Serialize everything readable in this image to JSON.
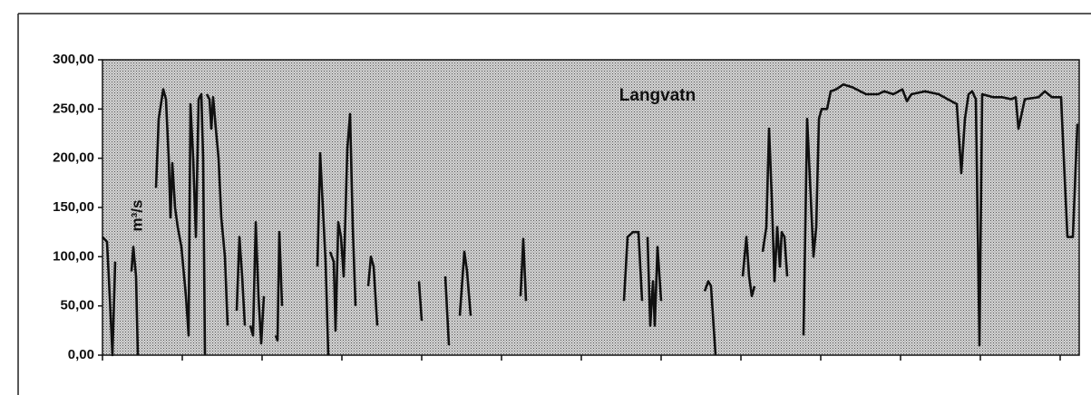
{
  "chart_data": {
    "type": "line",
    "title": "Langvatn",
    "y_label": "m³/s",
    "xlim": [
      0,
      1077
    ],
    "xticks": [
      0,
      88,
      176,
      264,
      352,
      440,
      528,
      616,
      704,
      792,
      880,
      968,
      1056
    ],
    "ylim": [
      0,
      300
    ],
    "yticks": [
      {
        "value": 0,
        "label": "0,00"
      },
      {
        "value": 50,
        "label": "50,00"
      },
      {
        "value": 100,
        "label": "100,00"
      },
      {
        "value": 150,
        "label": "150,00"
      },
      {
        "value": 200,
        "label": "200,00"
      },
      {
        "value": 250,
        "label": "250,00"
      },
      {
        "value": 300,
        "label": "300,00"
      }
    ],
    "x": [
      0,
      5,
      8,
      11,
      14,
      null,
      32,
      34,
      37,
      39,
      null,
      59,
      62,
      67,
      70,
      73,
      75,
      77,
      80,
      83,
      87,
      92,
      95,
      97,
      100,
      103,
      106,
      109,
      111,
      113,
      null,
      115,
      118,
      120,
      122,
      125,
      128,
      131,
      135,
      138,
      null,
      148,
      151,
      154,
      157,
      null,
      163,
      166,
      169,
      172,
      175,
      178,
      null,
      191,
      193,
      195,
      198,
      null,
      237,
      240,
      243,
      246,
      249,
      null,
      251,
      255,
      257,
      260,
      263,
      266,
      270,
      273,
      276,
      279,
      null,
      293,
      296,
      299,
      303,
      null,
      349,
      352,
      null,
      378,
      382,
      null,
      394,
      399,
      402,
      406,
      null,
      461,
      464,
      467,
      null,
      575,
      579,
      585,
      591,
      595,
      null,
      601,
      604,
      607,
      609,
      612,
      616,
      null,
      664,
      668,
      671,
      676,
      null,
      706,
      710,
      713,
      716,
      719,
      null,
      728,
      732,
      735,
      738,
      741,
      744,
      747,
      749,
      752,
      755,
      null,
      773,
      777,
      780,
      784,
      787,
      790,
      793,
      799,
      803,
      809,
      817,
      827,
      842,
      855,
      862,
      872,
      882,
      887,
      892,
      907,
      922,
      932,
      942,
      947,
      951,
      955,
      959,
      963,
      967,
      970,
      982,
      992,
      1002,
      1007,
      1010,
      1017,
      1032,
      1039,
      1047,
      1057,
      1060,
      1064,
      1070,
      1075
    ],
    "series": [
      {
        "name": "Langvatn",
        "color": "#111111",
        "values": [
          120,
          115,
          60,
          0,
          95,
          null,
          85,
          110,
          80,
          0,
          null,
          170,
          240,
          270,
          260,
          200,
          140,
          195,
          150,
          130,
          110,
          60,
          20,
          255,
          200,
          120,
          260,
          265,
          200,
          0,
          null,
          265,
          260,
          230,
          262,
          230,
          200,
          140,
          100,
          30,
          null,
          45,
          120,
          80,
          30,
          null,
          30,
          20,
          135,
          60,
          12,
          60,
          null,
          20,
          15,
          125,
          50,
          null,
          90,
          205,
          150,
          95,
          0,
          null,
          105,
          95,
          25,
          135,
          120,
          80,
          210,
          245,
          130,
          50,
          null,
          70,
          100,
          90,
          30,
          null,
          75,
          35,
          null,
          80,
          10,
          null,
          40,
          105,
          85,
          40,
          null,
          60,
          118,
          55,
          null,
          55,
          120,
          125,
          125,
          55,
          null,
          120,
          30,
          75,
          30,
          110,
          55,
          null,
          65,
          75,
          70,
          0,
          null,
          80,
          120,
          80,
          60,
          70,
          null,
          105,
          130,
          230,
          160,
          75,
          130,
          90,
          125,
          120,
          80,
          null,
          20,
          240,
          180,
          100,
          130,
          240,
          250,
          250,
          268,
          270,
          275,
          272,
          265,
          265,
          268,
          265,
          270,
          258,
          265,
          268,
          265,
          260,
          255,
          185,
          240,
          265,
          268,
          260,
          10,
          265,
          262,
          262,
          260,
          262,
          230,
          260,
          262,
          268,
          262,
          262,
          200,
          120,
          120,
          235
        ]
      }
    ]
  }
}
